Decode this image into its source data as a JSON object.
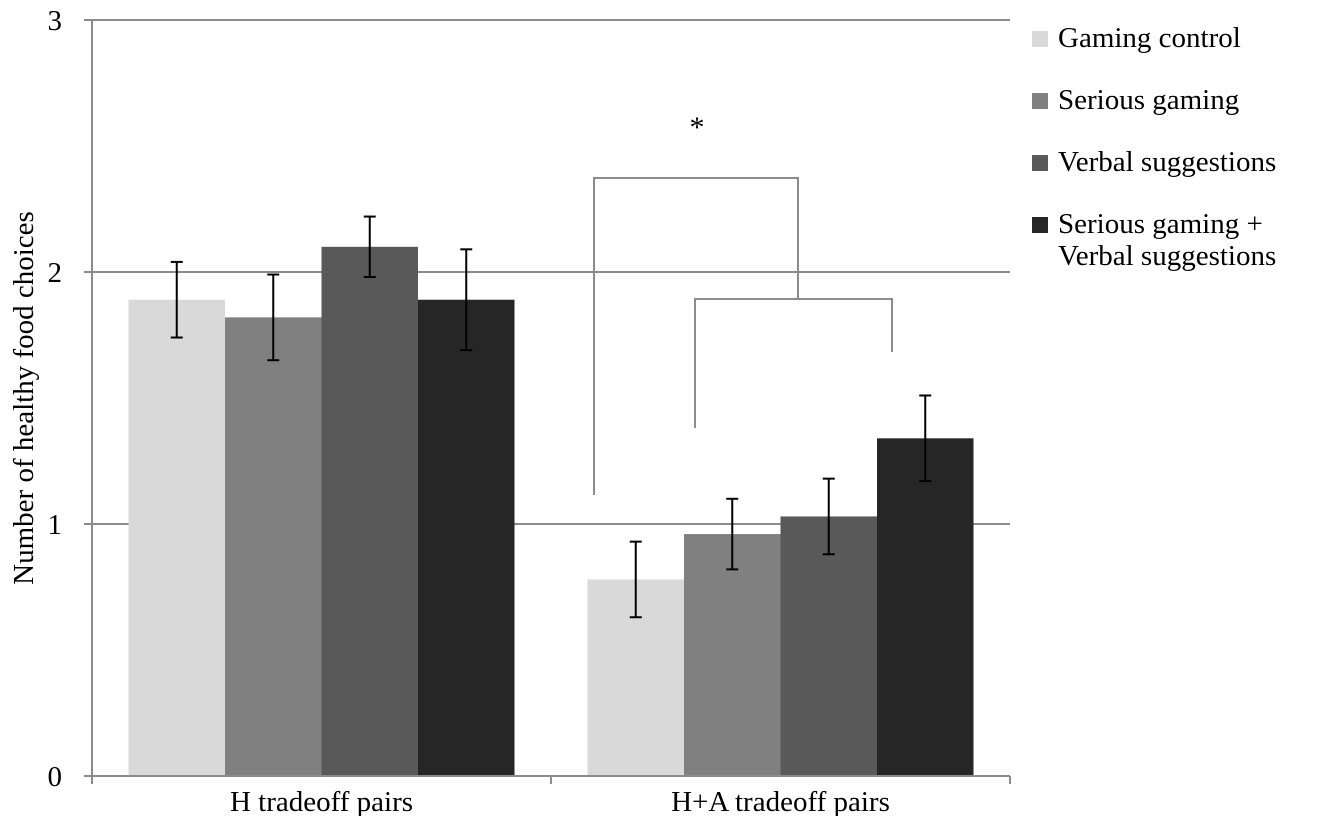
{
  "chart_data": {
    "type": "bar",
    "ylabel": "Number of healthy food choices",
    "xlabel": "",
    "ylim": [
      0,
      3
    ],
    "yticks": [
      0,
      1,
      2,
      3
    ],
    "grid": true,
    "legend_position": "right",
    "categories": [
      "H tradeoff pairs",
      "H+A tradeoff pairs"
    ],
    "series": [
      {
        "name": "Gaming control",
        "color": "#d9d9d9",
        "values": [
          1.89,
          0.78
        ],
        "error": [
          0.15,
          0.15
        ]
      },
      {
        "name": "Serious gaming",
        "color": "#808080",
        "values": [
          1.82,
          0.96
        ],
        "error": [
          0.17,
          0.14
        ]
      },
      {
        "name": "Verbal suggestions",
        "color": "#595959",
        "values": [
          2.1,
          1.03
        ],
        "error": [
          0.12,
          0.15
        ]
      },
      {
        "name": "Serious gaming +\nVerbal suggestions",
        "color": "#262626",
        "values": [
          1.89,
          1.34
        ],
        "error": [
          0.2,
          0.17
        ]
      }
    ],
    "annotations": [
      {
        "text": "*",
        "category": "H+A tradeoff pairs"
      }
    ]
  }
}
